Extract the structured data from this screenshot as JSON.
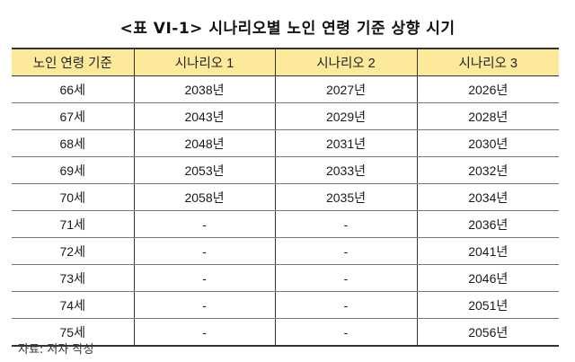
{
  "title": "<표 VI-1> 시나리오별 노인 연령 기준 상향 시기",
  "colors": {
    "header_bg": "#fde99a",
    "border": "#333333"
  },
  "table": {
    "headers": [
      "노인 연령 기준",
      "시나리오 1",
      "시나리오 2",
      "시나리오 3"
    ],
    "rows": [
      [
        "66세",
        "2038년",
        "2027년",
        "2026년"
      ],
      [
        "67세",
        "2043년",
        "2029년",
        "2028년"
      ],
      [
        "68세",
        "2048년",
        "2031년",
        "2030년"
      ],
      [
        "69세",
        "2053년",
        "2033년",
        "2032년"
      ],
      [
        "70세",
        "2058년",
        "2035년",
        "2034년"
      ],
      [
        "71세",
        "-",
        "-",
        "2036년"
      ],
      [
        "72세",
        "-",
        "-",
        "2041년"
      ],
      [
        "73세",
        "-",
        "-",
        "2046년"
      ],
      [
        "74세",
        "-",
        "-",
        "2051년"
      ],
      [
        "75세",
        "-",
        "-",
        "2056년"
      ]
    ]
  },
  "source": "자료: 저자 작성"
}
